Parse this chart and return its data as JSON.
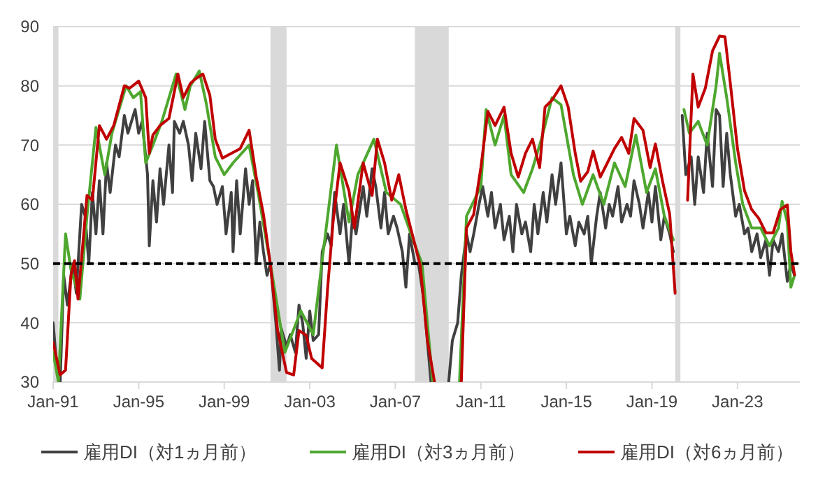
{
  "chart_data": {
    "type": "line",
    "xlim": [
      "1991-01",
      "2025-12"
    ],
    "xticks": [
      {
        "value": "1991-01",
        "label": "Jan-91"
      },
      {
        "value": "1995-01",
        "label": "Jan-95"
      },
      {
        "value": "1999-01",
        "label": "Jan-99"
      },
      {
        "value": "2003-01",
        "label": "Jan-03"
      },
      {
        "value": "2007-01",
        "label": "Jan-07"
      },
      {
        "value": "2011-01",
        "label": "Jan-11"
      },
      {
        "value": "2015-01",
        "label": "Jan-15"
      },
      {
        "value": "2019-01",
        "label": "Jan-19"
      },
      {
        "value": "2023-01",
        "label": "Jan-23"
      }
    ],
    "ylim": [
      30,
      90
    ],
    "yticks": [
      30,
      40,
      50,
      60,
      70,
      80,
      90
    ],
    "grid": "y",
    "legend": "bottom",
    "line_style": "solid",
    "bands": [
      {
        "axis": "x",
        "from": "1991-01",
        "to": "1991-04",
        "color": "#d9d9d9"
      },
      {
        "axis": "x",
        "from": "2001-03",
        "to": "2001-12",
        "color": "#d9d9d9"
      },
      {
        "axis": "x",
        "from": "2007-12",
        "to": "2009-07",
        "color": "#d9d9d9"
      },
      {
        "axis": "x",
        "from": "2020-02",
        "to": "2020-05",
        "color": "#d9d9d9"
      }
    ],
    "ref_lines": [
      {
        "axis": "y",
        "value": 50,
        "color": "#000000",
        "line_style": "dashed"
      }
    ],
    "series": [
      {
        "name": "雇用DI（対1ヵ月前）",
        "color": "#404040",
        "x": [
          "1991-01",
          "1991-03",
          "1991-05",
          "1991-07",
          "1991-09",
          "1991-12",
          "1992-02",
          "1992-05",
          "1992-07",
          "1992-09",
          "1992-11",
          "1993-01",
          "1993-03",
          "1993-05",
          "1993-07",
          "1993-09",
          "1993-12",
          "1994-02",
          "1994-05",
          "1994-07",
          "1994-11",
          "1995-01",
          "1995-03",
          "1995-06",
          "1995-07",
          "1995-09",
          "1995-11",
          "1996-01",
          "1996-03",
          "1996-06",
          "1996-08",
          "1996-09",
          "1996-12",
          "1997-02",
          "1997-05",
          "1997-07",
          "1997-09",
          "1997-12",
          "1998-02",
          "1998-05",
          "1998-07",
          "1998-09",
          "1998-12",
          "1999-02",
          "1999-05",
          "1999-06",
          "1999-08",
          "1999-10",
          "2000-01",
          "2000-03",
          "2000-05",
          "2000-07",
          "2000-09",
          "2000-11",
          "2001-01",
          "2001-03",
          "2001-06",
          "2001-08",
          "2001-09",
          "2001-12",
          "2002-02",
          "2002-05",
          "2002-07",
          "2002-09",
          "2002-11",
          "2003-01",
          "2003-03",
          "2003-06",
          "2003-08",
          "2003-11",
          "2004-01",
          "2004-03",
          "2004-06",
          "2004-08",
          "2004-11",
          "2005-01",
          "2005-03",
          "2005-07",
          "2005-09",
          "2005-12",
          "2006-02",
          "2006-05",
          "2006-07",
          "2006-09",
          "2006-12",
          "2007-02",
          "2007-05",
          "2007-07",
          "2007-09",
          "2007-12",
          "2008-02",
          "2008-05",
          "2008-07",
          "2008-09",
          "2009-01",
          "2009-07",
          "2009-09",
          "2009-12",
          "2010-02",
          "2010-05",
          "2010-07",
          "2010-09",
          "2010-12",
          "2011-02",
          "2011-05",
          "2011-07",
          "2011-09",
          "2011-12",
          "2012-02",
          "2012-05",
          "2012-07",
          "2012-09",
          "2012-12",
          "2013-02",
          "2013-05",
          "2013-07",
          "2013-09",
          "2013-12",
          "2014-02",
          "2014-05",
          "2014-07",
          "2014-10",
          "2015-01",
          "2015-03",
          "2015-06",
          "2015-08",
          "2015-11",
          "2016-01",
          "2016-03",
          "2016-06",
          "2016-08",
          "2016-11",
          "2017-01",
          "2017-03",
          "2017-06",
          "2017-08",
          "2017-11",
          "2018-01",
          "2018-03",
          "2018-06",
          "2018-08",
          "2018-11",
          "2019-01",
          "2019-03",
          "2019-06",
          "2019-08",
          "2019-11",
          "2020-01",
          "2020-03",
          "2020-06",
          "2020-08",
          "2020-11",
          "2021-01",
          "2021-03",
          "2021-06",
          "2021-08",
          "2021-11",
          "2022-01",
          "2022-03",
          "2022-05",
          "2022-07",
          "2022-09",
          "2022-12",
          "2023-02",
          "2023-05",
          "2023-07",
          "2023-09",
          "2023-12",
          "2024-02",
          "2024-05",
          "2024-07",
          "2024-09",
          "2024-12",
          "2025-02",
          "2025-05",
          "2025-07",
          "2025-09"
        ],
        "values": [
          40,
          33,
          30,
          48,
          43,
          50,
          45,
          60,
          58,
          50,
          62,
          55,
          64,
          55,
          67,
          62,
          70,
          68,
          75,
          72,
          76,
          72,
          74,
          65,
          53,
          64,
          57,
          66,
          60,
          70,
          62,
          74,
          72,
          74,
          70,
          64,
          72,
          66,
          74,
          64,
          63,
          60,
          63,
          55,
          62,
          52,
          64,
          55,
          66,
          60,
          64,
          50,
          57,
          52,
          48,
          50,
          40,
          32,
          39,
          36,
          38,
          35,
          43,
          40,
          34,
          42,
          37,
          38,
          52,
          55,
          53,
          62,
          55,
          60,
          50,
          58,
          55,
          63,
          58,
          66,
          63,
          56,
          62,
          55,
          58,
          56,
          52,
          46,
          55,
          50,
          50,
          44,
          37,
          30,
          null,
          30,
          37,
          40,
          48,
          55,
          52,
          55,
          60,
          63,
          58,
          62,
          56,
          60,
          54,
          58,
          52,
          60,
          55,
          57,
          52,
          60,
          55,
          62,
          57,
          65,
          60,
          67,
          55,
          58,
          53,
          57,
          55,
          58,
          50,
          58,
          62,
          56,
          60,
          58,
          63,
          57,
          60,
          58,
          64,
          60,
          56,
          62,
          57,
          63,
          54,
          58,
          55,
          52,
          null,
          75,
          65,
          68,
          60,
          68,
          62,
          72,
          63,
          76,
          75,
          63,
          72,
          65,
          58,
          60,
          55,
          56,
          52,
          55,
          51,
          54,
          48,
          54,
          52,
          55,
          47,
          50,
          48
        ]
      },
      {
        "name": "雇用DI（対3ヵ月前）",
        "color": "#4ea72e",
        "x": [
          "1991-01",
          "1991-04",
          "1991-08",
          "1991-11",
          "1992-04",
          "1992-08",
          "1993-01",
          "1993-06",
          "1993-10",
          "1994-06",
          "1994-10",
          "1995-02",
          "1995-05",
          "1995-09",
          "1996-02",
          "1996-10",
          "1997-03",
          "1997-06",
          "1997-11",
          "1998-03",
          "1998-08",
          "1999-01",
          "1999-06",
          "2000-03",
          "2000-08",
          "2001-04",
          "2001-11",
          "2002-08",
          "2003-03",
          "2003-07",
          "2004-04",
          "2004-11",
          "2005-04",
          "2006-01",
          "2006-08",
          "2007-04",
          "2007-11",
          "2008-04",
          "2008-10",
          "2009-06",
          "2010-01",
          "2010-05",
          "2011-01",
          "2011-04",
          "2011-09",
          "2012-02",
          "2012-06",
          "2013-01",
          "2013-06",
          "2013-11",
          "2014-05",
          "2014-10",
          "2015-05",
          "2015-10",
          "2016-04",
          "2016-10",
          "2017-04",
          "2017-10",
          "2018-04",
          "2018-10",
          "2019-03",
          "2019-08",
          "2020-01",
          "2020-04",
          "2020-07",
          "2020-10",
          "2021-03",
          "2021-08",
          "2022-01",
          "2022-03",
          "2022-07",
          "2022-12",
          "2023-04",
          "2023-09",
          "2024-02",
          "2024-07",
          "2024-12",
          "2025-02",
          "2025-05",
          "2025-07",
          "2025-09"
        ],
        "values": [
          35,
          30,
          55,
          49,
          44,
          58,
          73,
          65,
          72,
          80,
          78,
          79,
          67,
          70,
          74,
          82,
          76,
          80,
          82.5,
          77,
          68,
          65,
          67,
          70,
          62,
          48,
          35,
          42,
          38,
          48,
          70,
          57,
          65,
          71,
          62,
          60,
          54,
          50,
          30,
          null,
          30,
          58,
          63,
          76,
          70,
          75,
          65,
          62,
          66,
          71,
          78,
          76.8,
          65,
          60,
          65,
          60,
          67,
          63,
          71.7,
          62,
          66,
          58,
          54,
          null,
          76,
          72,
          74,
          70,
          80,
          85.5,
          78,
          67,
          60,
          56,
          56,
          53,
          56,
          60.5,
          57,
          46,
          48
        ]
      },
      {
        "name": "雇用DI（対6ヵ月前）",
        "color": "#c00000",
        "x": [
          "1991-01",
          "1991-05",
          "1991-08",
          "1991-11",
          "1992-01",
          "1992-03",
          "1992-06",
          "1992-08",
          "1992-11",
          "1993-03",
          "1993-07",
          "1993-11",
          "1994-05",
          "1994-08",
          "1995-01",
          "1995-05",
          "1995-07",
          "1995-09",
          "1996-01",
          "1996-06",
          "1996-11",
          "1997-02",
          "1997-06",
          "1997-09",
          "1998-01",
          "1998-05",
          "1998-08",
          "1998-12",
          "1999-05",
          "1999-10",
          "2000-03",
          "2000-07",
          "2000-11",
          "2001-03",
          "2001-07",
          "2001-12",
          "2002-04",
          "2002-07",
          "2002-11",
          "2003-02",
          "2003-08",
          "2003-11",
          "2004-02",
          "2004-06",
          "2004-11",
          "2005-02",
          "2005-07",
          "2005-12",
          "2006-03",
          "2006-07",
          "2006-11",
          "2007-03",
          "2007-07",
          "2007-11",
          "2008-03",
          "2008-07",
          "2008-11",
          "2009-06",
          "2010-02",
          "2010-05",
          "2010-09",
          "2011-01",
          "2011-05",
          "2011-09",
          "2012-02",
          "2012-06",
          "2012-10",
          "2013-02",
          "2013-06",
          "2013-10",
          "2014-01",
          "2014-05",
          "2014-10",
          "2015-02",
          "2015-06",
          "2015-09",
          "2016-01",
          "2016-04",
          "2016-08",
          "2016-12",
          "2017-04",
          "2017-08",
          "2017-12",
          "2018-03",
          "2018-08",
          "2018-12",
          "2019-03",
          "2019-07",
          "2019-11",
          "2020-02",
          "2020-04",
          "2020-09",
          "2020-12",
          "2021-03",
          "2021-07",
          "2021-11",
          "2022-03",
          "2022-06",
          "2022-09",
          "2023-01",
          "2023-05",
          "2023-09",
          "2024-01",
          "2024-05",
          "2024-09",
          "2025-01",
          "2025-05",
          "2025-07",
          "2025-09"
        ],
        "values": [
          36.7,
          31.2,
          32,
          48,
          50.5,
          44,
          54.4,
          61.5,
          60.7,
          73.3,
          71,
          73.3,
          80,
          79.6,
          80.8,
          78,
          68.6,
          71.7,
          73.3,
          74.5,
          82,
          78,
          80.4,
          81.2,
          82,
          78.4,
          71,
          67.8,
          68.6,
          69.4,
          72.5,
          64.6,
          58.3,
          49.7,
          38.7,
          31.6,
          31.2,
          38.7,
          37.9,
          34,
          32.4,
          45.7,
          56.8,
          67,
          62.3,
          56,
          67,
          61.5,
          71,
          67,
          60.7,
          65,
          59.1,
          54.4,
          49.7,
          37.1,
          30,
          null,
          30,
          56,
          58.3,
          66.2,
          75.7,
          73.3,
          76.4,
          68.6,
          64.6,
          68.6,
          71,
          66.2,
          76.4,
          77.6,
          80,
          76.4,
          68.6,
          63.9,
          65.5,
          69,
          64.6,
          67,
          69.4,
          71.3,
          68.6,
          74.5,
          72.5,
          66.2,
          70.2,
          63.9,
          58.3,
          45,
          null,
          60.7,
          82,
          76.4,
          79.6,
          85.9,
          88.4,
          88.3,
          80.4,
          69.4,
          62.3,
          59.1,
          57.6,
          55.2,
          55.2,
          59.1,
          59.9,
          52,
          48.1
        ]
      }
    ]
  }
}
